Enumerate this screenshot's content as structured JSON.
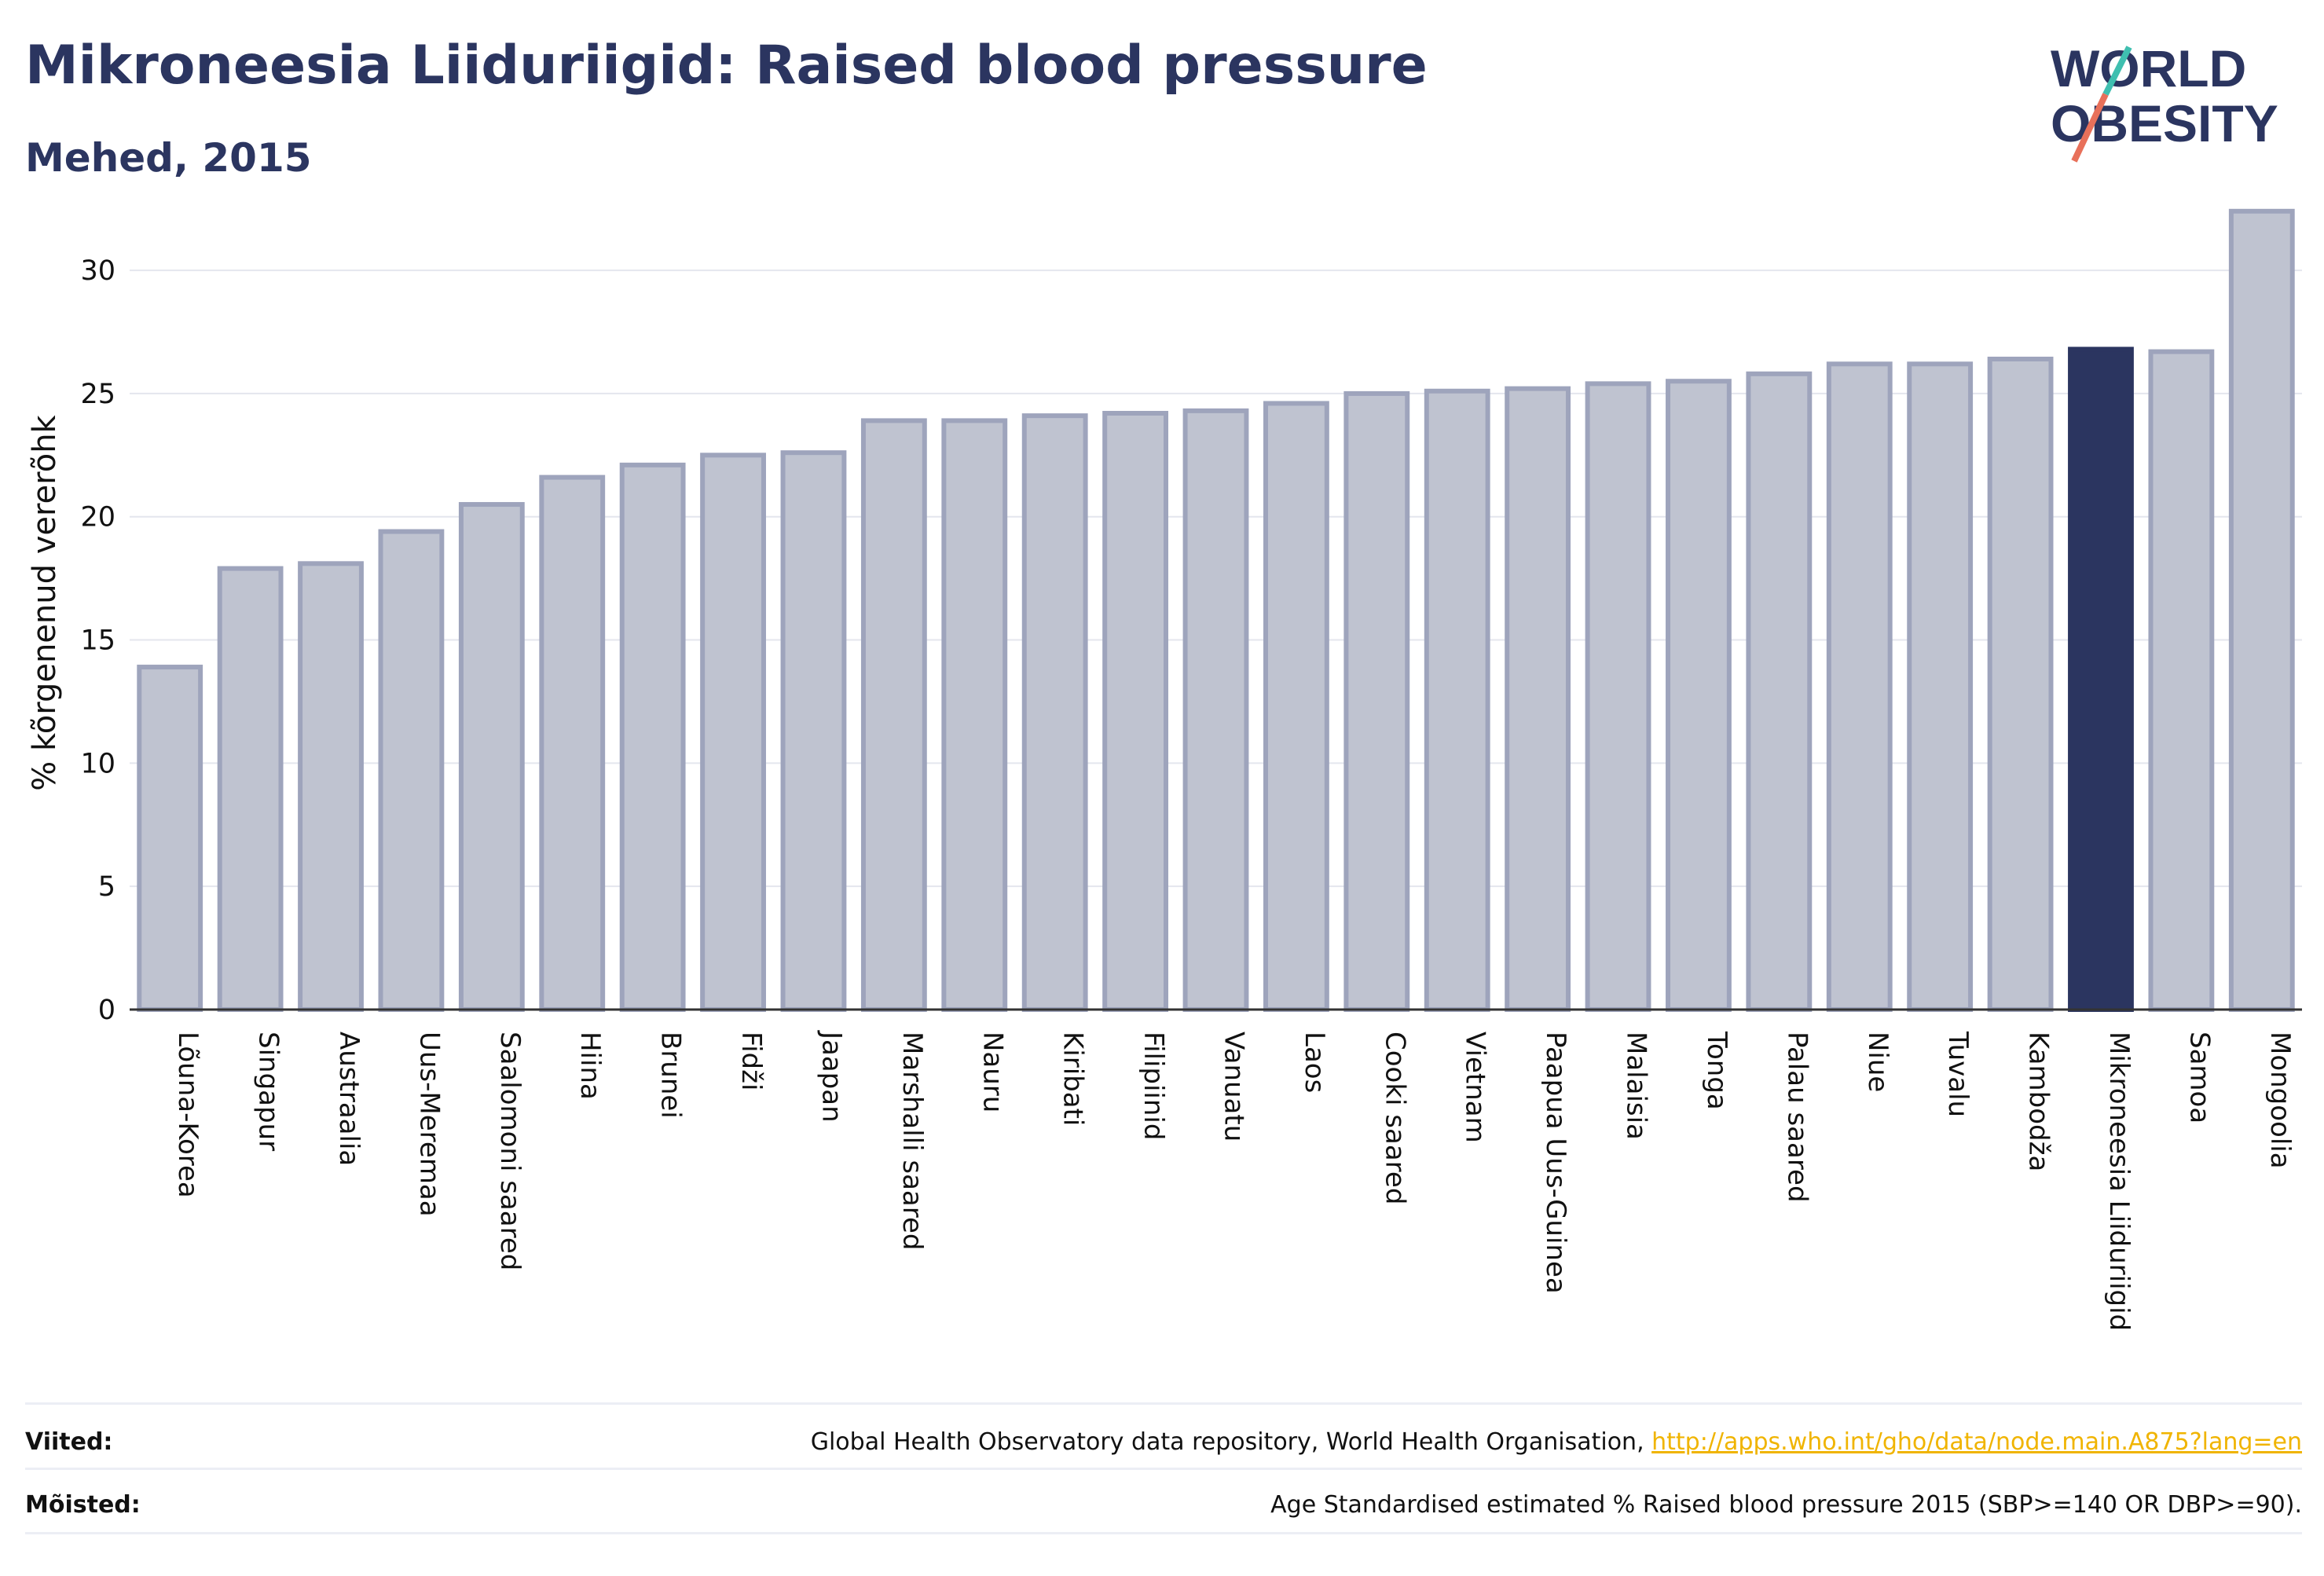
{
  "header": {
    "title": "Mikroneesia Liiduriigid: Raised blood pressure",
    "subtitle": "Mehed, 2015"
  },
  "logo": {
    "line1": "WORLD",
    "line2": "OBESITY",
    "colors": {
      "text": "#2b3560",
      "slash_top": "#3fbfb0",
      "slash_bottom": "#e8705a"
    }
  },
  "chart_data": {
    "type": "bar",
    "ylabel": "% kõrgenenud vererõhk",
    "ylim": [
      0,
      33
    ],
    "yticks": [
      0,
      5,
      10,
      15,
      20,
      25,
      30
    ],
    "grid": true,
    "categories": [
      "Lõuna-Korea",
      "Singapur",
      "Austraalia",
      "Uus-Meremaa",
      "Saalomoni saared",
      "Hiina",
      "Brunei",
      "Fidži",
      "Jaapan",
      "Marshalli saared",
      "Nauru",
      "Kiribati",
      "Filipiinid",
      "Vanuatu",
      "Laos",
      "Cooki saared",
      "Vietnam",
      "Paapua Uus-Guinea",
      "Malaisia",
      "Tonga",
      "Palau saared",
      "Niue",
      "Tuvalu",
      "Kambodža",
      "Mikroneesia Liiduriigid",
      "Samoa",
      "Mongoolia"
    ],
    "values": [
      13.9,
      17.9,
      18.1,
      19.4,
      20.5,
      21.6,
      22.1,
      22.5,
      22.6,
      23.9,
      23.9,
      24.1,
      24.2,
      24.3,
      24.6,
      25.0,
      25.1,
      25.2,
      25.4,
      25.5,
      25.8,
      26.2,
      26.2,
      26.4,
      26.8,
      26.7,
      32.4
    ],
    "highlight_category": "Mikroneesia Liiduriigid",
    "colors": {
      "bar": "#bfc3d0",
      "bar_edge": "#9ea4bc",
      "highlight": "#2b3560",
      "grid": "#e4e6ee",
      "axis": "#333333"
    }
  },
  "footer": {
    "sources_label": "Viited:",
    "sources_text": "Global Health Observatory data repository, World Health Organisation, ",
    "sources_link": "http://apps.who.int/gho/data/node.main.A875?lang=en",
    "definitions_label": "Mõisted:",
    "definitions_text": "Age Standardised estimated % Raised blood pressure 2015 (SBP>=140 OR DBP>=90)."
  }
}
